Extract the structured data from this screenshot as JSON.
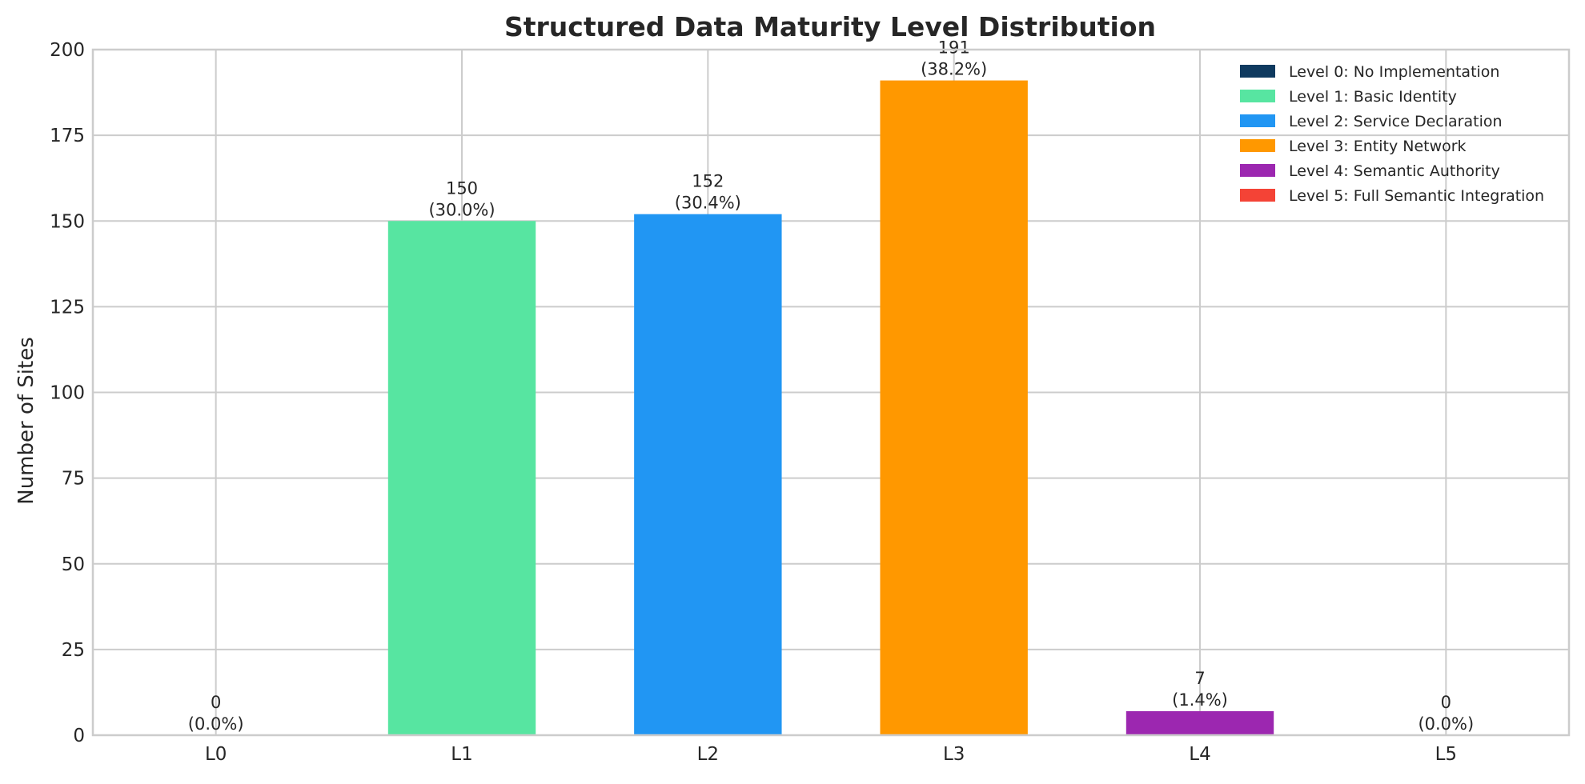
{
  "chart_data": {
    "type": "bar",
    "title": "Structured Data Maturity Level Distribution",
    "xlabel": "",
    "ylabel": "Number of Sites",
    "categories": [
      "L0",
      "L1",
      "L2",
      "L3",
      "L4",
      "L5"
    ],
    "values": [
      0,
      150,
      152,
      191,
      7,
      0
    ],
    "value_labels": [
      "0",
      "150",
      "152",
      "191",
      "7",
      "0"
    ],
    "percent_labels": [
      "(0.0%)",
      "(30.0%)",
      "(30.4%)",
      "(38.2%)",
      "(1.4%)",
      "(0.0%)"
    ],
    "colors": [
      "#0f3a5f",
      "#57e5a1",
      "#2196f3",
      "#ff9800",
      "#9c27b0",
      "#f44336"
    ],
    "ylim": [
      0,
      200
    ],
    "yticks": [
      0,
      25,
      50,
      75,
      100,
      125,
      150,
      175,
      200
    ],
    "grid": true,
    "legend": {
      "placement": "top-right",
      "entries": [
        "Level 0: No Implementation",
        "Level 1: Basic Identity",
        "Level 2: Service Declaration",
        "Level 3: Entity Network",
        "Level 4: Semantic Authority",
        "Level 5: Full Semantic Integration"
      ]
    }
  }
}
